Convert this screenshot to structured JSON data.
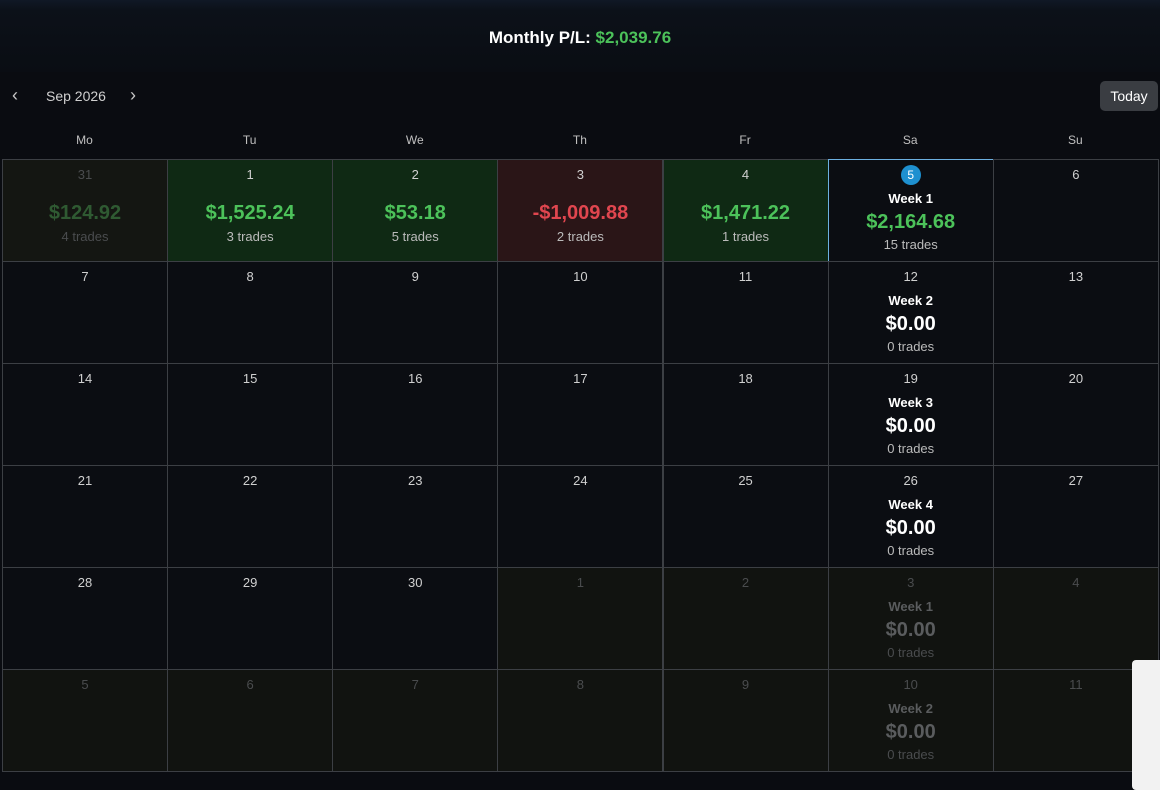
{
  "header": {
    "label": "Monthly P/L:",
    "value": "$2,039.76"
  },
  "nav": {
    "month": "Sep 2026",
    "today": "Today"
  },
  "weekdays": [
    "Mo",
    "Tu",
    "We",
    "Th",
    "Fr",
    "Sa",
    "Su"
  ],
  "weeks": [
    [
      {
        "day": "31",
        "pnl": "$124.92",
        "trades": "4 trades",
        "tone": "profit",
        "muted": true
      },
      {
        "day": "1",
        "pnl": "$1,525.24",
        "trades": "3 trades",
        "tone": "profit"
      },
      {
        "day": "2",
        "pnl": "$53.18",
        "trades": "5 trades",
        "tone": "profit"
      },
      {
        "day": "3",
        "pnl": "-$1,009.88",
        "trades": "2 trades",
        "tone": "loss"
      },
      {
        "day": "4",
        "pnl": "$1,471.22",
        "trades": "1 trades",
        "tone": "profit"
      },
      {
        "day": "5",
        "week": "Week 1",
        "pnl": "$2,164.68",
        "trades": "15 trades",
        "tone": "profit",
        "highlight": true
      },
      {
        "day": "6"
      }
    ],
    [
      {
        "day": "7"
      },
      {
        "day": "8"
      },
      {
        "day": "9"
      },
      {
        "day": "10"
      },
      {
        "day": "11"
      },
      {
        "day": "12",
        "week": "Week 2",
        "pnl": "$0.00",
        "trades": "0 trades"
      },
      {
        "day": "13"
      }
    ],
    [
      {
        "day": "14"
      },
      {
        "day": "15"
      },
      {
        "day": "16"
      },
      {
        "day": "17"
      },
      {
        "day": "18"
      },
      {
        "day": "19",
        "week": "Week 3",
        "pnl": "$0.00",
        "trades": "0 trades"
      },
      {
        "day": "20"
      }
    ],
    [
      {
        "day": "21"
      },
      {
        "day": "22"
      },
      {
        "day": "23"
      },
      {
        "day": "24"
      },
      {
        "day": "25"
      },
      {
        "day": "26",
        "week": "Week 4",
        "pnl": "$0.00",
        "trades": "0 trades"
      },
      {
        "day": "27"
      }
    ],
    [
      {
        "day": "28"
      },
      {
        "day": "29"
      },
      {
        "day": "30"
      },
      {
        "day": "1",
        "muted": true
      },
      {
        "day": "2",
        "muted": true
      },
      {
        "day": "3",
        "week": "Week 1",
        "pnl": "$0.00",
        "trades": "0 trades",
        "muted": true
      },
      {
        "day": "4",
        "muted": true
      }
    ],
    [
      {
        "day": "5",
        "muted": true
      },
      {
        "day": "6",
        "muted": true
      },
      {
        "day": "7",
        "muted": true
      },
      {
        "day": "8",
        "muted": true
      },
      {
        "day": "9",
        "muted": true
      },
      {
        "day": "10",
        "week": "Week 2",
        "pnl": "$0.00",
        "trades": "0 trades",
        "muted": true
      },
      {
        "day": "11",
        "muted": true
      }
    ]
  ]
}
